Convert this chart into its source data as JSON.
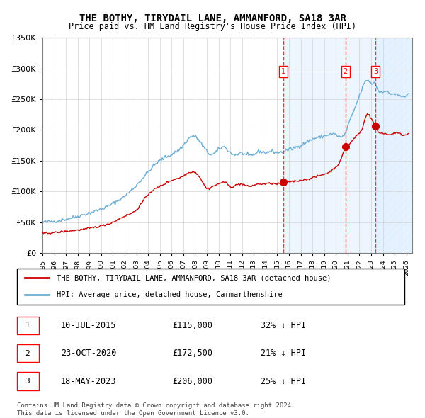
{
  "title": "THE BOTHY, TIRYDAIL LANE, AMMANFORD, SA18 3AR",
  "subtitle": "Price paid vs. HM Land Registry's House Price Index (HPI)",
  "legend_line1": "THE BOTHY, TIRYDAIL LANE, AMMANFORD, SA18 3AR (detached house)",
  "legend_line2": "HPI: Average price, detached house, Carmarthenshire",
  "footnote1": "Contains HM Land Registry data © Crown copyright and database right 2024.",
  "footnote2": "This data is licensed under the Open Government Licence v3.0.",
  "sale_labels": [
    "1",
    "2",
    "3"
  ],
  "sale_dates": [
    "10-JUL-2015",
    "23-OCT-2020",
    "18-MAY-2023"
  ],
  "sale_prices": [
    115000,
    172500,
    206000
  ],
  "sale_hpi_diff": [
    "32% ↓ HPI",
    "21% ↓ HPI",
    "25% ↓ HPI"
  ],
  "sale_years": [
    2015.52,
    2020.81,
    2023.38
  ],
  "hpi_color": "#6baed6",
  "price_color": "#cc0000",
  "background_shade": "#ddeeff",
  "hatch_color": "#aaccee",
  "ylim": [
    0,
    350000
  ],
  "yticks": [
    0,
    50000,
    100000,
    150000,
    200000,
    250000,
    300000,
    350000
  ],
  "ytick_labels": [
    "£0",
    "£50K",
    "£100K",
    "£150K",
    "£200K",
    "£250K",
    "£300K",
    "£350K"
  ],
  "xmin": 1995.0,
  "xmax": 2026.5
}
